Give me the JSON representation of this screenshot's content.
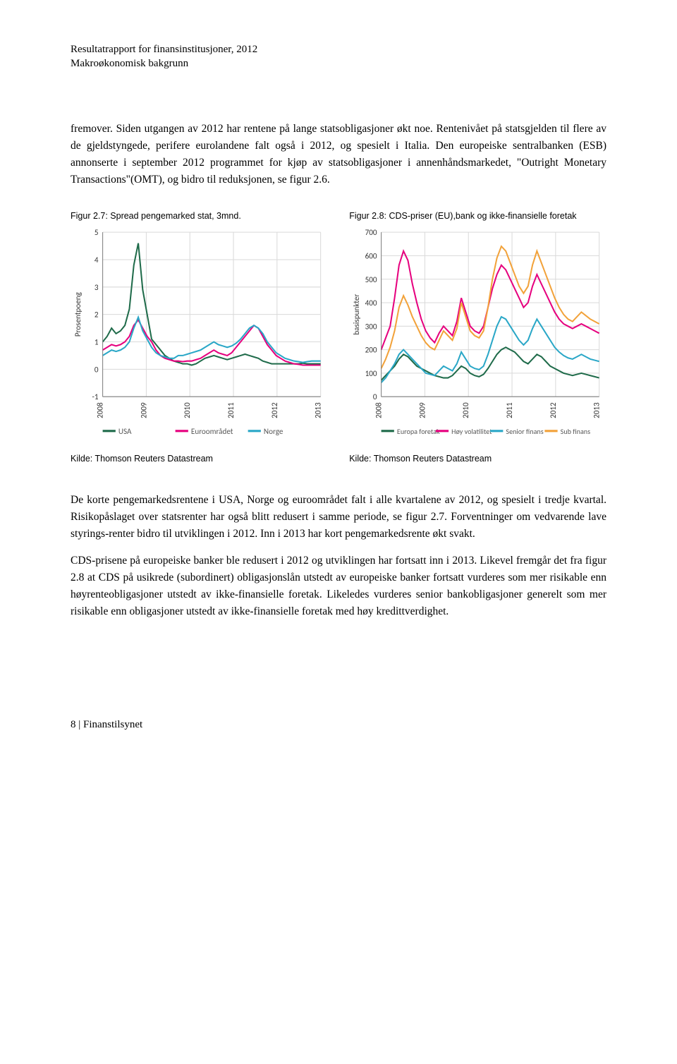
{
  "header": {
    "line1": "Resultatrapport for finansinstitusjoner, 2012",
    "line2": "Makroøkonomisk bakgrunn"
  },
  "paragraphs": {
    "p1": "fremover. Siden utgangen av 2012 har rentene på lange statsobligasjoner økt noe. Rentenivået på statsgjelden til flere av de gjeldstyngede, perifere eurolandene falt også i 2012, og spesielt i Italia. Den europeiske sentralbanken (ESB) annonserte i september 2012 programmet for kjøp av statsobligasjoner i annenhåndsmarkedet, \"Outright Monetary Transactions\"(OMT), og bidro til reduksjonen, se figur 2.6.",
    "p2": "De korte pengemarkedsrentene i USA, Norge og euroområdet falt i alle kvartalene av 2012, og spesielt i tredje kvartal. Risikopåslaget over statsrenter har også blitt redusert i samme periode, se figur 2.7. Forventninger om vedvarende lave styrings-renter bidro til utviklingen i 2012. Inn i 2013 har kort pengemarkedsrente økt svakt.",
    "p3": "CDS-prisene på europeiske banker ble redusert i 2012 og utviklingen har fortsatt inn i 2013. Likevel fremgår det fra figur 2.8 at CDS på usikrede (subordinert) obligasjonslån utstedt av europeiske banker fortsatt vurderes som mer risikable enn høyrenteobligasjoner utstedt av ikke-finansielle foretak. Likeledes vurderes senior bankobligasjoner generelt som mer risikable enn obligasjoner utstedt av ikke-finansielle foretak med høy kredittverdighet."
  },
  "figures": {
    "fig27": {
      "caption": "Figur 2.7: Spread pengemarked stat, 3mnd.",
      "source": "Kilde: Thomson Reuters Datastream",
      "type": "line",
      "y_label": "Prosentpoeng",
      "y_ticks": [
        -1,
        0,
        1,
        2,
        3,
        4,
        5
      ],
      "x_ticks": [
        "2008",
        "2009",
        "2010",
        "2011",
        "2012",
        "2013"
      ],
      "colors": {
        "usa": "#1f6b4a",
        "euro": "#e6007e",
        "norge": "#2aa7c7",
        "grid": "#d9d9d9",
        "axis": "#808080",
        "bg": "#ffffff"
      },
      "legend": [
        "USA",
        "Euroområdet",
        "Norge"
      ],
      "series": {
        "usa": [
          1.0,
          1.2,
          1.5,
          1.3,
          1.4,
          1.6,
          2.2,
          3.8,
          4.6,
          2.9,
          2.0,
          1.1,
          0.9,
          0.7,
          0.5,
          0.4,
          0.3,
          0.25,
          0.2,
          0.2,
          0.15,
          0.2,
          0.3,
          0.4,
          0.45,
          0.5,
          0.45,
          0.4,
          0.35,
          0.4,
          0.45,
          0.5,
          0.55,
          0.5,
          0.45,
          0.4,
          0.3,
          0.25,
          0.2,
          0.2,
          0.2,
          0.2,
          0.2,
          0.2,
          0.2,
          0.22,
          0.2,
          0.2,
          0.2,
          0.2
        ],
        "euro": [
          0.7,
          0.8,
          0.9,
          0.85,
          0.9,
          1.0,
          1.2,
          1.6,
          1.8,
          1.5,
          1.2,
          1.0,
          0.7,
          0.5,
          0.4,
          0.35,
          0.3,
          0.3,
          0.28,
          0.3,
          0.3,
          0.35,
          0.4,
          0.5,
          0.6,
          0.7,
          0.6,
          0.55,
          0.5,
          0.6,
          0.8,
          1.0,
          1.2,
          1.4,
          1.6,
          1.5,
          1.2,
          0.9,
          0.7,
          0.5,
          0.4,
          0.3,
          0.25,
          0.2,
          0.18,
          0.15,
          0.15,
          0.15,
          0.15,
          0.15
        ],
        "norge": [
          0.5,
          0.6,
          0.7,
          0.65,
          0.7,
          0.8,
          1.0,
          1.5,
          1.9,
          1.4,
          1.1,
          0.8,
          0.6,
          0.5,
          0.45,
          0.4,
          0.4,
          0.5,
          0.5,
          0.55,
          0.6,
          0.65,
          0.7,
          0.8,
          0.9,
          1.0,
          0.9,
          0.85,
          0.8,
          0.85,
          0.95,
          1.1,
          1.3,
          1.5,
          1.6,
          1.5,
          1.3,
          1.0,
          0.8,
          0.6,
          0.5,
          0.4,
          0.35,
          0.3,
          0.28,
          0.25,
          0.28,
          0.3,
          0.3,
          0.3
        ]
      }
    },
    "fig28": {
      "caption": "Figur 2.8: CDS-priser (EU),bank og ikke-finansielle foretak",
      "source": "Kilde: Thomson Reuters Datastream",
      "type": "line",
      "y_label": "basispunkter",
      "y_ticks": [
        0,
        100,
        200,
        300,
        400,
        500,
        600,
        700
      ],
      "x_ticks": [
        "2008",
        "2009",
        "2010",
        "2011",
        "2012",
        "2013"
      ],
      "colors": {
        "europa": "#1f6b4a",
        "hoyv": "#e6007e",
        "senior": "#2aa7c7",
        "sub": "#f2a23a",
        "grid": "#d9d9d9",
        "axis": "#808080",
        "bg": "#ffffff"
      },
      "legend": [
        "Europa foretak",
        "Høy volatilitet",
        "Senior finans",
        "Sub finans"
      ],
      "series": {
        "europa": [
          70,
          90,
          110,
          130,
          160,
          180,
          170,
          150,
          130,
          120,
          110,
          100,
          90,
          85,
          80,
          80,
          90,
          110,
          130,
          120,
          100,
          90,
          85,
          95,
          120,
          150,
          180,
          200,
          210,
          200,
          190,
          170,
          150,
          140,
          160,
          180,
          170,
          150,
          130,
          120,
          110,
          100,
          95,
          90,
          95,
          100,
          95,
          90,
          85,
          80
        ],
        "hoyv": [
          200,
          250,
          300,
          420,
          560,
          620,
          580,
          480,
          400,
          330,
          280,
          250,
          230,
          270,
          300,
          280,
          260,
          320,
          420,
          360,
          300,
          280,
          270,
          300,
          380,
          460,
          520,
          560,
          540,
          500,
          460,
          420,
          380,
          400,
          470,
          520,
          480,
          440,
          400,
          360,
          330,
          310,
          300,
          290,
          300,
          310,
          300,
          290,
          280,
          270
        ],
        "senior": [
          60,
          80,
          110,
          140,
          180,
          200,
          180,
          160,
          140,
          120,
          100,
          95,
          90,
          110,
          130,
          120,
          110,
          140,
          190,
          160,
          130,
          120,
          115,
          130,
          180,
          240,
          300,
          340,
          330,
          300,
          270,
          240,
          220,
          240,
          290,
          330,
          300,
          270,
          240,
          210,
          190,
          175,
          165,
          160,
          170,
          180,
          170,
          160,
          155,
          150
        ],
        "sub": [
          120,
          160,
          210,
          280,
          380,
          430,
          390,
          340,
          300,
          260,
          230,
          210,
          200,
          240,
          280,
          260,
          240,
          290,
          400,
          340,
          280,
          260,
          250,
          280,
          380,
          500,
          590,
          640,
          620,
          570,
          520,
          470,
          440,
          470,
          560,
          620,
          570,
          520,
          470,
          420,
          380,
          350,
          330,
          320,
          340,
          360,
          345,
          330,
          320,
          310
        ]
      }
    }
  },
  "footer": {
    "text": "8 | Finanstilsynet"
  }
}
